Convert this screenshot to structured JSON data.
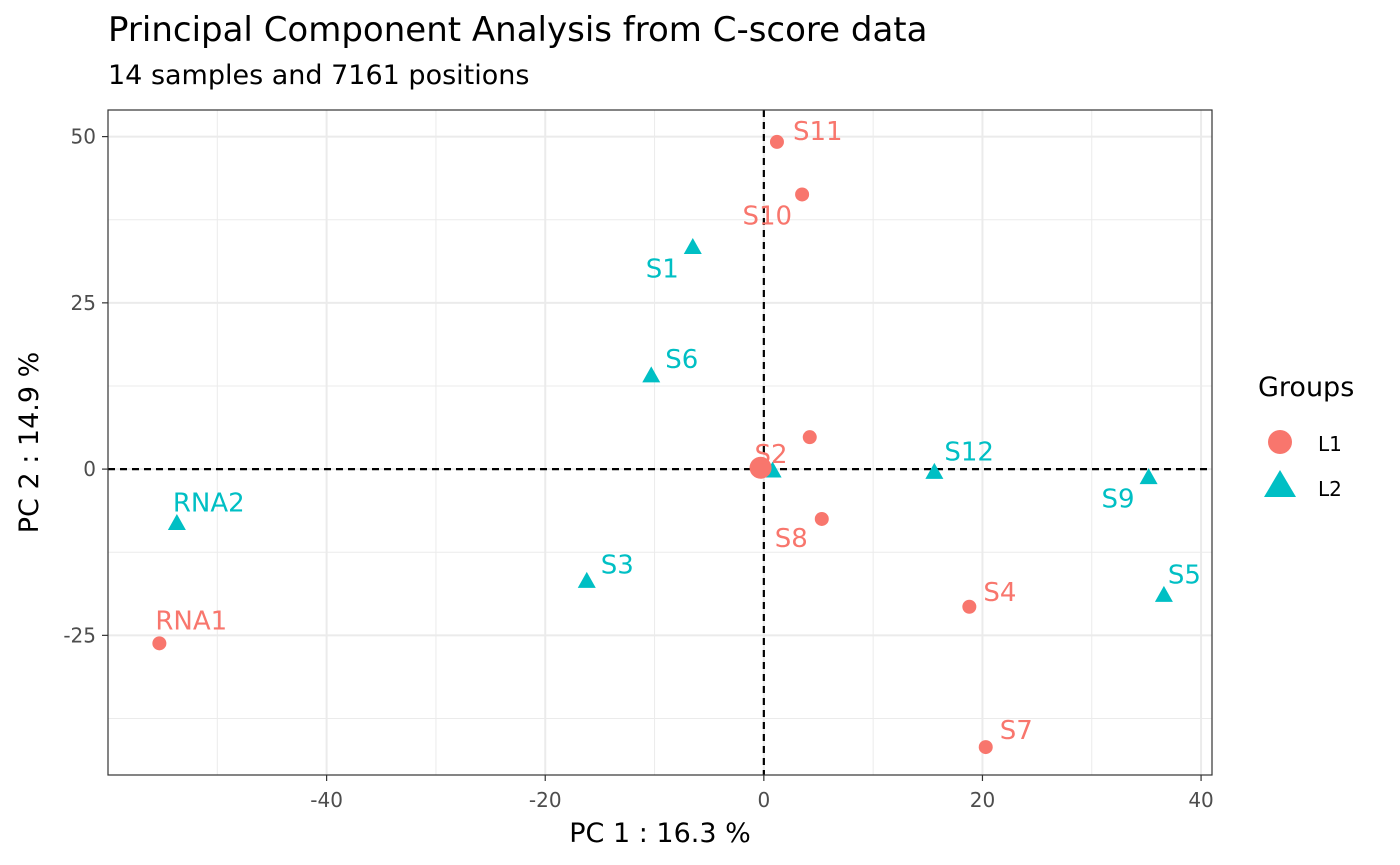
{
  "chart_data": {
    "type": "scatter",
    "title": "Principal Component Analysis from C-score data",
    "subtitle": "14 samples and 7161 positions",
    "xlabel": "PC 1 : 16.3 %",
    "ylabel": "PC 2 : 14.9 %",
    "xlim": [
      -60,
      41
    ],
    "ylim": [
      -46,
      54
    ],
    "x_ticks": [
      -40,
      -20,
      0,
      20,
      40
    ],
    "y_ticks": [
      -25,
      0,
      25,
      50
    ],
    "grid": true,
    "reference_lines": {
      "x": 0,
      "y": 0
    },
    "legend": {
      "title": "Groups",
      "position": "right"
    },
    "series": [
      {
        "name": "L1",
        "marker": "circle",
        "color": "#F8766D",
        "points": [
          {
            "label": "S11",
            "x": 1.2,
            "y": 49.2
          },
          {
            "label": "S10",
            "x": 3.5,
            "y": 41.3
          },
          {
            "label": "",
            "x": 4.2,
            "y": 4.8
          },
          {
            "label": "S2",
            "x": -0.3,
            "y": 0.2
          },
          {
            "label": "S8",
            "x": 5.3,
            "y": -7.5
          },
          {
            "label": "S4",
            "x": 18.8,
            "y": -20.7
          },
          {
            "label": "S7",
            "x": 20.3,
            "y": -41.8
          },
          {
            "label": "RNA1",
            "x": -55.3,
            "y": -26.2
          }
        ]
      },
      {
        "name": "L2",
        "marker": "triangle",
        "color": "#00BFC4",
        "points": [
          {
            "label": "S1",
            "x": -6.5,
            "y": 33.3
          },
          {
            "label": "S6",
            "x": -10.3,
            "y": 14.0
          },
          {
            "label": "",
            "x": -0.1,
            "y": 0.0
          },
          {
            "label": "",
            "x": 0.8,
            "y": -0.3
          },
          {
            "label": "S12",
            "x": 15.6,
            "y": -0.5
          },
          {
            "label": "S9",
            "x": 35.2,
            "y": -1.3
          },
          {
            "label": "S5",
            "x": 36.6,
            "y": -19.0
          },
          {
            "label": "S3",
            "x": -16.2,
            "y": -16.9
          },
          {
            "label": "RNA2",
            "x": -53.7,
            "y": -8.2
          }
        ]
      }
    ]
  }
}
